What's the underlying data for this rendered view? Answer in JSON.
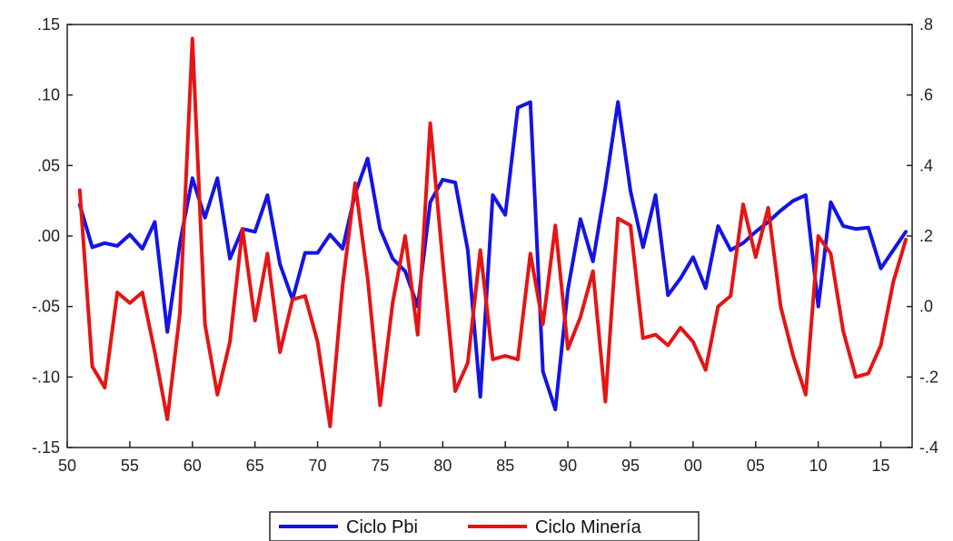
{
  "chart_data": {
    "type": "line",
    "title": "",
    "xlabel": "",
    "ylabel": "",
    "x": [
      1951,
      1952,
      1953,
      1954,
      1955,
      1956,
      1957,
      1958,
      1959,
      1960,
      1961,
      1962,
      1963,
      1964,
      1965,
      1966,
      1967,
      1968,
      1969,
      1970,
      1971,
      1972,
      1973,
      1974,
      1975,
      1976,
      1977,
      1978,
      1979,
      1980,
      1981,
      1982,
      1983,
      1984,
      1985,
      1986,
      1987,
      1988,
      1989,
      1990,
      1991,
      1992,
      1993,
      1994,
      1995,
      1996,
      1997,
      1998,
      1999,
      2000,
      2001,
      2002,
      2003,
      2004,
      2005,
      2006,
      2007,
      2008,
      2009,
      2010,
      2011,
      2012,
      2013,
      2014,
      2015,
      2016,
      2017
    ],
    "xlim": [
      1950,
      2017.5
    ],
    "x_ticks": [
      1950,
      1955,
      1960,
      1965,
      1970,
      1975,
      1980,
      1985,
      1990,
      1995,
      2000,
      2005,
      2010,
      2015
    ],
    "x_tick_labels": [
      "50",
      "55",
      "60",
      "65",
      "70",
      "75",
      "80",
      "85",
      "90",
      "95",
      "00",
      "05",
      "10",
      "15"
    ],
    "left_axis": {
      "ylim": [
        -0.15,
        0.15
      ],
      "ticks": [
        -0.15,
        -0.1,
        -0.05,
        0.0,
        0.05,
        0.1,
        0.15
      ],
      "tick_labels": [
        "-.15",
        "-.10",
        "-.05",
        ".00",
        ".05",
        ".10",
        ".15"
      ]
    },
    "right_axis": {
      "ylim": [
        -0.4,
        0.8
      ],
      "ticks": [
        -0.4,
        -0.2,
        0.0,
        0.2,
        0.4,
        0.6,
        0.8
      ],
      "tick_labels": [
        "-.4",
        "-.2",
        ".0",
        ".2",
        ".4",
        ".6",
        ".8"
      ]
    },
    "series": [
      {
        "name": "Ciclo Pbi",
        "color": "#1414e6",
        "axis": "left",
        "values": [
          0.022,
          -0.008,
          -0.005,
          -0.007,
          0.001,
          -0.009,
          0.01,
          -0.068,
          -0.005,
          0.041,
          0.013,
          0.041,
          -0.016,
          0.005,
          0.003,
          0.029,
          -0.02,
          -0.045,
          -0.012,
          -0.012,
          0.001,
          -0.009,
          0.03,
          0.055,
          0.005,
          -0.016,
          -0.025,
          -0.05,
          0.024,
          0.04,
          0.038,
          -0.01,
          -0.114,
          0.029,
          0.015,
          0.091,
          0.095,
          -0.096,
          -0.123,
          -0.038,
          0.012,
          -0.018,
          0.035,
          0.095,
          0.032,
          -0.008,
          0.029,
          -0.042,
          -0.03,
          -0.015,
          -0.037,
          0.007,
          -0.01,
          -0.005,
          0.003,
          0.01,
          0.018,
          0.025,
          0.029,
          -0.05,
          0.024,
          0.007,
          0.005,
          0.006,
          -0.023,
          -0.01,
          0.003
        ]
      },
      {
        "name": "Ciclo Minería",
        "color": "#e61414",
        "axis": "right",
        "values": [
          0.33,
          -0.17,
          -0.23,
          0.04,
          0.01,
          0.04,
          -0.13,
          -0.32,
          -0.02,
          0.76,
          -0.05,
          -0.25,
          -0.1,
          0.22,
          -0.04,
          0.15,
          -0.13,
          0.02,
          0.03,
          -0.1,
          -0.34,
          0.06,
          0.35,
          0.08,
          -0.28,
          0.01,
          0.2,
          -0.08,
          0.52,
          0.13,
          -0.24,
          -0.16,
          0.16,
          -0.15,
          -0.14,
          -0.15,
          0.15,
          -0.05,
          0.23,
          -0.12,
          -0.03,
          0.1,
          -0.27,
          0.25,
          0.23,
          -0.09,
          -0.08,
          -0.11,
          -0.06,
          -0.1,
          -0.18,
          0.0,
          0.03,
          0.29,
          0.14,
          0.28,
          0.0,
          -0.14,
          -0.25,
          0.2,
          0.15,
          -0.07,
          -0.2,
          -0.19,
          -0.11,
          0.07,
          0.19
        ]
      }
    ],
    "legend": {
      "placement": "bottom-center",
      "entries": [
        "Ciclo Pbi",
        "Ciclo Minería"
      ]
    },
    "grid": false
  }
}
